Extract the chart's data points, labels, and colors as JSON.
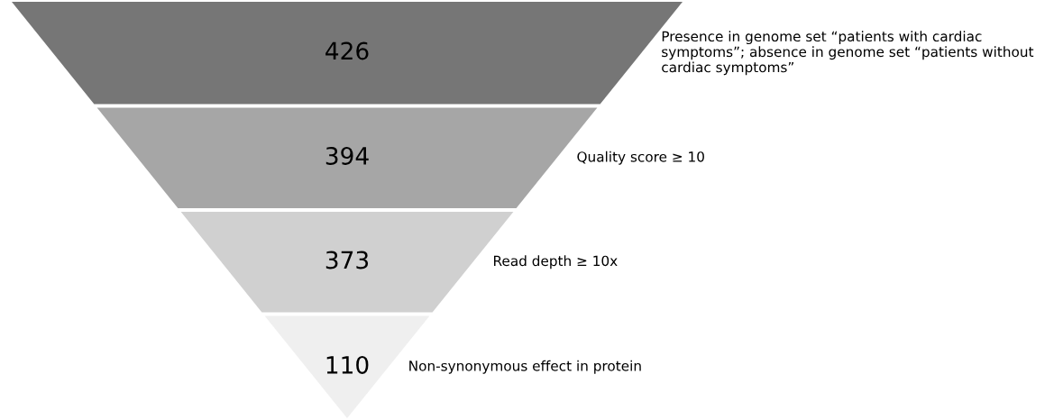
{
  "chart_data": {
    "type": "other",
    "categories": [
      "Presence in genome set “patients with cardiac symptoms”; absence in genome set “patients without cardiac symptoms”",
      "Quality score ≥ 10",
      "Read depth ≥ 10x",
      "Non-synonymous effect in protein"
    ],
    "values": [
      426,
      394,
      373,
      110
    ],
    "colors": [
      "#767676",
      "#a6a6a6",
      "#d0d0d0",
      "#efefef"
    ],
    "data_labels": true
  }
}
